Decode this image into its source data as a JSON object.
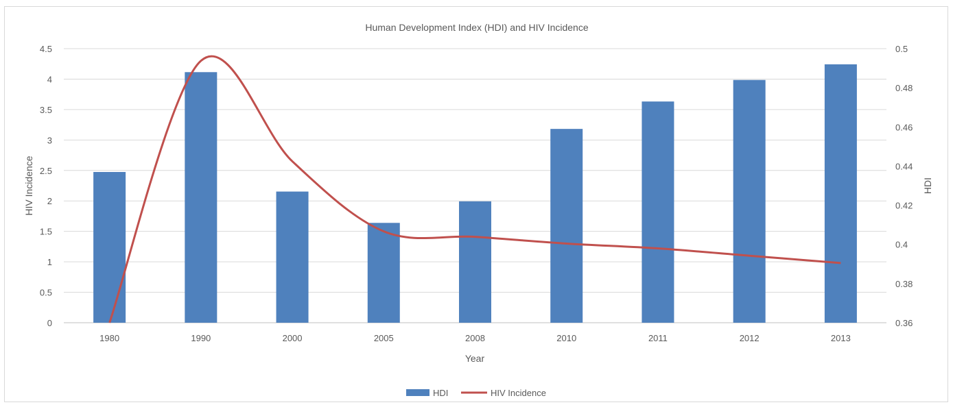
{
  "chart_data": {
    "type": "bar",
    "title": "Human Development  Index (HDI) and HIV Incidence",
    "xlabel": "Year",
    "ylabel_left": "HIV Incidence",
    "ylabel_right": "HDI",
    "categories": [
      "1980",
      "1990",
      "2000",
      "2005",
      "2008",
      "2010",
      "2011",
      "2012",
      "2013"
    ],
    "y_left": {
      "min": 0,
      "max": 4.5,
      "ticks": [
        "0",
        "0.5",
        "1",
        "1.5",
        "2",
        "2.5",
        "3",
        "3.5",
        "4",
        "4.5"
      ]
    },
    "y_right": {
      "min": 0.36,
      "max": 0.5,
      "ticks": [
        "0.36",
        "0.38",
        "0.4",
        "0.42",
        "0.44",
        "0.46",
        "0.48",
        "0.5"
      ]
    },
    "grid": true,
    "legend_position": "bottom",
    "series": [
      {
        "name": "HDI",
        "type": "bar",
        "axis": "right",
        "color": "#4f81bd",
        "values": [
          0.437,
          0.488,
          0.427,
          0.411,
          0.422,
          0.459,
          0.473,
          0.484,
          0.492
        ]
      },
      {
        "name": "HIV Incidence",
        "type": "line",
        "axis": "left",
        "smooth": true,
        "color": "#c0504d",
        "values": [
          0.0,
          4.3,
          2.65,
          1.5,
          1.41,
          1.3,
          1.22,
          1.1,
          0.98
        ]
      }
    ]
  }
}
